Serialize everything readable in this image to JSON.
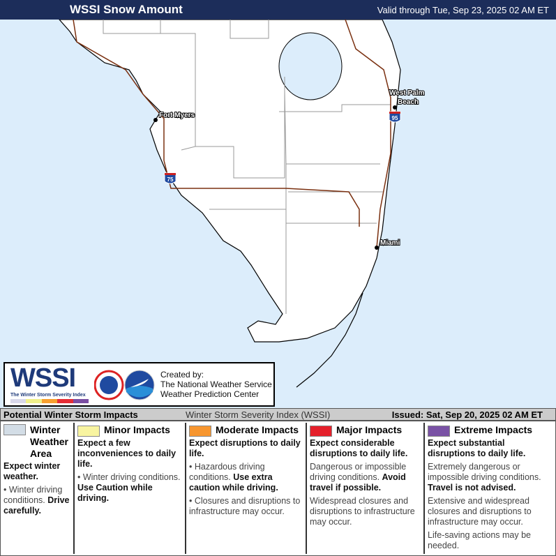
{
  "header": {
    "title": "WSSI Snow Amount",
    "valid": "Valid through Tue, Sep 23, 2025 02 AM ET"
  },
  "map": {
    "colors": {
      "ocean": "#dcedfb",
      "land": "#ffffff",
      "roads": "#7a3010",
      "counties": "#888888"
    },
    "cities": [
      "Fort Myers",
      "West Palm Beach",
      "Miami"
    ],
    "interstates": [
      "75",
      "95"
    ]
  },
  "logo": {
    "wssi": "WSSI",
    "subtitle": "The Winter Storm Severity Index",
    "created_by": "Created by:",
    "org1": "The National Weather Service",
    "org2": "Weather Prediction Center",
    "colors": [
      "#d8d8ea",
      "#f0f08a",
      "#f7a030",
      "#e52d36",
      "#7a4fa3"
    ]
  },
  "infobar": {
    "left": "Potential Winter Storm Impacts",
    "center": "Winter Storm Severity Index (WSSI)",
    "right": "Issued: Sat, Sep 20, 2025 02 AM ET"
  },
  "legend": [
    {
      "title": "Winter Weather Area",
      "color": "#d3dde6",
      "expect": "Expect winter weather.",
      "bullets": [
        {
          "text": "Winter driving conditions. ",
          "bold": "Drive carefully."
        }
      ]
    },
    {
      "title": "Minor Impacts",
      "color": "#f8f4a0",
      "expect": "Expect a few inconveniences to daily life.",
      "bullets": [
        {
          "text": "Winter driving conditions. ",
          "bold": "Use Caution while driving."
        }
      ]
    },
    {
      "title": "Moderate Impacts",
      "color": "#f7962f",
      "expect": "Expect disruptions to daily life.",
      "bullets": [
        {
          "text": "Hazardous driving conditions. ",
          "bold": "Use extra caution while driving."
        },
        {
          "text": "Closures and disruptions to infrastructure may occur.",
          "bold": ""
        }
      ]
    },
    {
      "title": "Major Impacts",
      "color": "#e5202b",
      "expect": "Expect considerable disruptions to daily life.",
      "bullets": [
        {
          "text": "Dangerous or impossible driving conditions. ",
          "bold": "Avoid travel if possible."
        },
        {
          "text": "Widespread closures and disruptions to infrastructure may occur.",
          "bold": ""
        }
      ]
    },
    {
      "title": "Extreme Impacts",
      "color": "#7a52a5",
      "expect": "Expect substantial disruptions to daily life.",
      "bullets": [
        {
          "text": "Extremely dangerous or impossible driving conditions. ",
          "bold": "Travel is not advised."
        },
        {
          "text": "Extensive and widespread closures and disruptions to infrastructure may occur.",
          "bold": ""
        },
        {
          "text": "Life-saving actions may be needed.",
          "bold": ""
        }
      ]
    }
  ]
}
